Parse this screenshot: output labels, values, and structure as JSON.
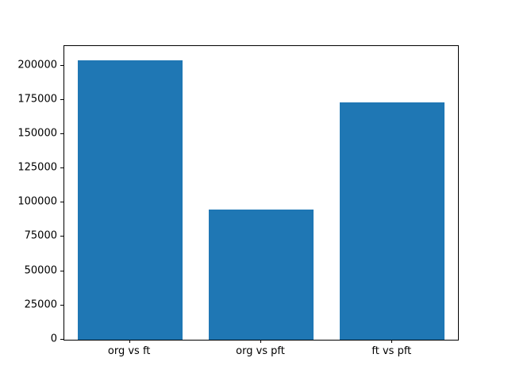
{
  "chart_data": {
    "type": "bar",
    "categories": [
      "org vs ft",
      "org vs pft",
      "ft vs pft"
    ],
    "values": [
      204000,
      95000,
      173000
    ],
    "title": "",
    "xlabel": "",
    "ylabel": "",
    "ylim": [
      0,
      214200
    ],
    "yticks": [
      0,
      25000,
      50000,
      75000,
      100000,
      125000,
      150000,
      175000,
      200000
    ],
    "bar_color": "#1f77b4",
    "axis_color": "#000000",
    "background_color": "#ffffff",
    "grid": false,
    "legend_position": "none",
    "bar_width_fraction": 0.8
  }
}
